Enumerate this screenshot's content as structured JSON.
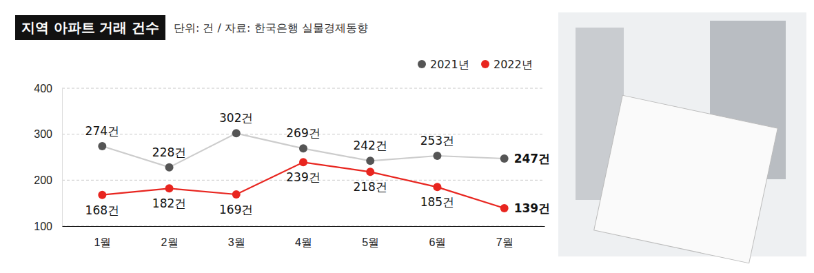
{
  "chart_data": {
    "type": "line",
    "title": "지역 아파트 거래 건수",
    "subtitle": "단위: 건 / 자료: 한국은행 실물경제동향",
    "categories": [
      "1월",
      "2월",
      "3월",
      "4월",
      "5월",
      "6월",
      "7월"
    ],
    "series": [
      {
        "name": "2021년",
        "color": "#555555",
        "values": [
          274,
          228,
          302,
          269,
          242,
          253,
          247
        ],
        "value_labels": [
          "274건",
          "228건",
          "302건",
          "269건",
          "242건",
          "253건",
          "247건"
        ]
      },
      {
        "name": "2022년",
        "color": "#e8251f",
        "values": [
          168,
          182,
          169,
          239,
          218,
          185,
          139
        ],
        "value_labels": [
          "168건",
          "182건",
          "169건",
          "239건",
          "218건",
          "185건",
          "139건"
        ]
      }
    ],
    "ylim": [
      100,
      400
    ],
    "yticks": [
      100,
      200,
      300,
      400
    ],
    "grid": true,
    "legend": "upper right",
    "data_labels": true,
    "marker": "circle"
  }
}
